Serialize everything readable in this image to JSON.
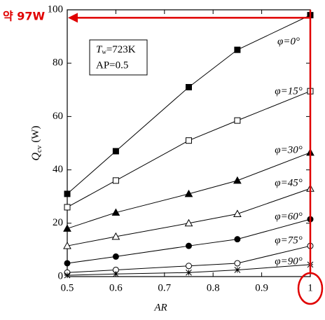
{
  "chart_data": {
    "type": "line",
    "x": [
      0.5,
      0.6,
      0.75,
      0.85,
      1
    ],
    "xlim": [
      0.5,
      1
    ],
    "xticks": [
      0.5,
      0.6,
      0.7,
      0.8,
      0.9,
      1
    ],
    "ylim": [
      0,
      100
    ],
    "yticks": [
      0,
      20,
      40,
      60,
      80,
      100
    ],
    "xlabel": "AR",
    "ylabel": {
      "main": "Q",
      "sub": "cv",
      "unit": "(W)"
    },
    "inset": [
      {
        "main": "T",
        "sub": "w",
        "rest": "=723K"
      },
      {
        "main": "AP=0.5"
      }
    ],
    "series": [
      {
        "name": "φ=0°",
        "color": "#000000",
        "marker": "square-filled",
        "values": [
          31,
          47,
          71,
          85,
          98
        ]
      },
      {
        "name": "φ=15°",
        "color": "#000000",
        "marker": "square-open",
        "values": [
          26,
          36,
          51,
          58.5,
          69.5
        ]
      },
      {
        "name": "φ=30°",
        "color": "#000000",
        "marker": "triangle-filled",
        "values": [
          18,
          24,
          31,
          36,
          46.5
        ]
      },
      {
        "name": "φ=45°",
        "color": "#000000",
        "marker": "triangle-open",
        "values": [
          11.5,
          15,
          20,
          23.5,
          33
        ]
      },
      {
        "name": "φ=60°",
        "color": "#000000",
        "marker": "circle-filled",
        "values": [
          5,
          7.5,
          11.5,
          14,
          21.5
        ]
      },
      {
        "name": "φ=75°",
        "color": "#000000",
        "marker": "circle-open",
        "values": [
          1.5,
          2.5,
          4,
          5,
          11.5
        ]
      },
      {
        "name": "φ=90°",
        "color": "#000000",
        "marker": "asterisk",
        "values": [
          0.5,
          1,
          1.5,
          2.5,
          4.5
        ]
      }
    ],
    "annotation": {
      "text": "약 97W",
      "value": 97,
      "color": "#e00000"
    }
  }
}
